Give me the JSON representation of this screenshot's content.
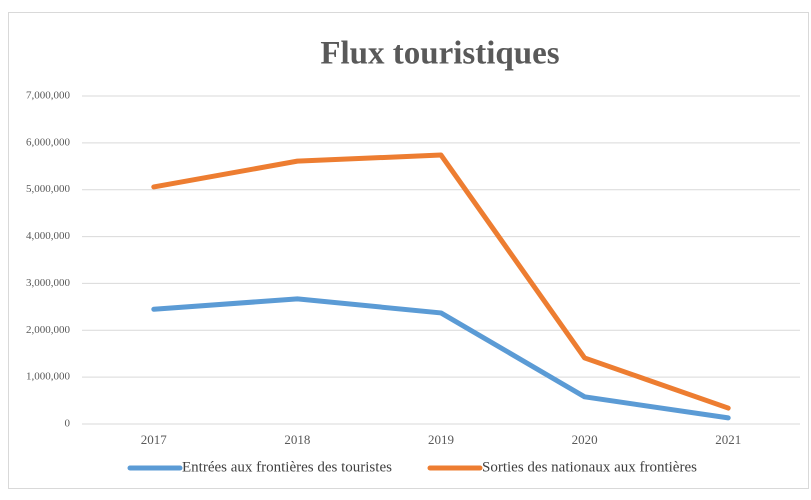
{
  "chart_data": {
    "type": "line",
    "title": "Flux touristiques",
    "categories": [
      "2017",
      "2018",
      "2019",
      "2020",
      "2021"
    ],
    "series": [
      {
        "name": "Entrées aux frontières des touristes",
        "color": "#5b9bd5",
        "values": [
          2450000,
          2670000,
          2370000,
          580000,
          130000
        ]
      },
      {
        "name": "Sorties des nationaux aux frontières",
        "color": "#ed7d31",
        "values": [
          5060000,
          5610000,
          5740000,
          1410000,
          340000
        ]
      }
    ],
    "ylim": [
      0,
      7000000
    ],
    "yticks": [
      0,
      {
        "value": 1000000,
        "label": "1,000,000"
      },
      {
        "value": 2000000,
        "label": "2,000,000"
      },
      {
        "value": 3000000,
        "label": "3,000,000"
      },
      {
        "value": 4000000,
        "label": "4,000,000"
      },
      {
        "value": 5000000,
        "label": "5,000,000"
      },
      {
        "value": 6000000,
        "label": "6,000,000"
      },
      {
        "value": 7000000,
        "label": "7,000,000"
      }
    ],
    "grid": true,
    "legend": "bottom"
  }
}
